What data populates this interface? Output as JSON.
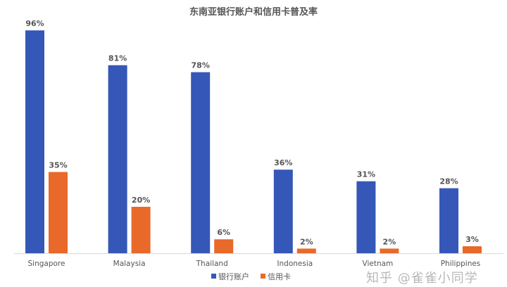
{
  "chart_data": {
    "type": "bar",
    "title": "东南亚银行账户和信用卡普及率",
    "categories": [
      "Singapore",
      "Malaysia",
      "Thailand",
      "Indonesia",
      "Vietnam",
      "Philippines"
    ],
    "series": [
      {
        "name": "银行账户",
        "color": "#3557b7",
        "values": [
          96,
          81,
          78,
          36,
          31,
          28
        ],
        "labels": [
          "96%",
          "81%",
          "78%",
          "36%",
          "31%",
          "28%"
        ]
      },
      {
        "name": "信用卡",
        "color": "#e8692a",
        "values": [
          35,
          20,
          6,
          2,
          2,
          3
        ],
        "labels": [
          "35%",
          "20%",
          "6%",
          "2%",
          "2%",
          "3%"
        ]
      }
    ],
    "ylim": [
      0,
      100
    ],
    "grid": false,
    "legend": "bottom"
  },
  "watermark": "知乎 @雀雀小同学"
}
